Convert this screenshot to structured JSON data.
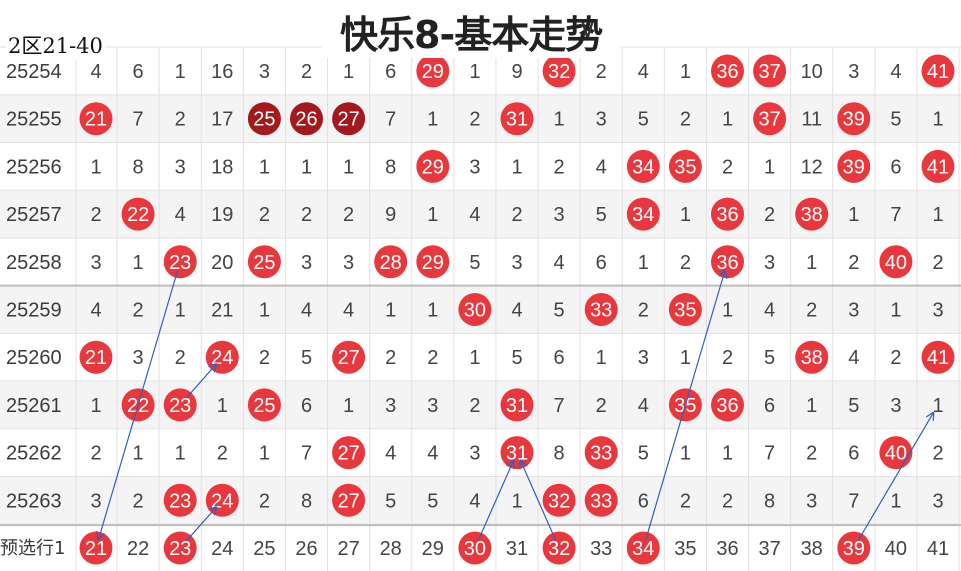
{
  "header": {
    "title": "快乐8-基本走势",
    "chevron_icon": "chevron-down-icon",
    "chevron_glyph": "∨",
    "subtitle": "2区21-40"
  },
  "grid": {
    "columns": [
      21,
      22,
      23,
      24,
      25,
      26,
      27,
      28,
      29,
      30,
      31,
      32,
      33,
      34,
      35,
      36,
      37,
      38,
      39,
      40,
      41
    ],
    "rows": [
      {
        "label": "25254",
        "values": [
          "4",
          "6",
          "1",
          "16",
          "3",
          "2",
          "1",
          "6",
          "29",
          "1",
          "9",
          "32",
          "2",
          "4",
          "1",
          "36",
          "37",
          "10",
          "3",
          "4",
          "41"
        ]
      },
      {
        "label": "25255",
        "values": [
          "21",
          "7",
          "2",
          "17",
          "25",
          "26",
          "27",
          "7",
          "1",
          "2",
          "31",
          "1",
          "3",
          "5",
          "2",
          "1",
          "37",
          "11",
          "39",
          "5",
          "1"
        ]
      },
      {
        "label": "25256",
        "values": [
          "1",
          "8",
          "3",
          "18",
          "1",
          "1",
          "1",
          "8",
          "29",
          "3",
          "1",
          "2",
          "4",
          "34",
          "35",
          "2",
          "1",
          "12",
          "39",
          "6",
          "41"
        ]
      },
      {
        "label": "25257",
        "values": [
          "2",
          "22",
          "4",
          "19",
          "2",
          "2",
          "2",
          "9",
          "1",
          "4",
          "2",
          "3",
          "5",
          "34",
          "1",
          "36",
          "2",
          "38",
          "1",
          "7",
          "1"
        ]
      },
      {
        "label": "25258",
        "values": [
          "3",
          "1",
          "23",
          "20",
          "25",
          "3",
          "3",
          "28",
          "29",
          "5",
          "3",
          "4",
          "6",
          "1",
          "2",
          "36",
          "3",
          "1",
          "2",
          "40",
          "2"
        ]
      },
      {
        "label": "25259",
        "values": [
          "4",
          "2",
          "1",
          "21",
          "1",
          "4",
          "4",
          "1",
          "1",
          "30",
          "4",
          "5",
          "33",
          "2",
          "35",
          "1",
          "4",
          "2",
          "3",
          "1",
          "3"
        ]
      },
      {
        "label": "25260",
        "values": [
          "21",
          "3",
          "2",
          "24",
          "2",
          "5",
          "27",
          "2",
          "2",
          "1",
          "5",
          "6",
          "1",
          "3",
          "1",
          "2",
          "5",
          "38",
          "4",
          "2",
          "41"
        ]
      },
      {
        "label": "25261",
        "values": [
          "1",
          "22",
          "23",
          "1",
          "25",
          "6",
          "1",
          "3",
          "3",
          "2",
          "31",
          "7",
          "2",
          "4",
          "35",
          "36",
          "6",
          "1",
          "5",
          "3",
          "1"
        ]
      },
      {
        "label": "25262",
        "values": [
          "2",
          "1",
          "1",
          "2",
          "1",
          "7",
          "27",
          "4",
          "4",
          "3",
          "31",
          "8",
          "33",
          "5",
          "1",
          "1",
          "7",
          "2",
          "6",
          "40",
          "2"
        ]
      },
      {
        "label": "25263",
        "values": [
          "3",
          "2",
          "23",
          "24",
          "2",
          "8",
          "27",
          "5",
          "5",
          "4",
          "1",
          "32",
          "33",
          "6",
          "2",
          "2",
          "8",
          "3",
          "7",
          "1",
          "3"
        ]
      }
    ],
    "dark_balls": [
      "25255:25",
      "25255:26",
      "25255:27"
    ],
    "forecast": {
      "label": "预选行1",
      "values": [
        "21",
        "22",
        "23",
        "24",
        "25",
        "26",
        "27",
        "28",
        "29",
        "30",
        "31",
        "32",
        "33",
        "34",
        "35",
        "36",
        "37",
        "38",
        "39",
        "40",
        "41"
      ],
      "picked": [
        "21",
        "23",
        "30",
        "32",
        "34",
        "39"
      ]
    }
  },
  "colors": {
    "ball_red": "#e8383d",
    "ball_dark": "#a3191e",
    "number_text": "#444444",
    "row_label": "#3a3a3a",
    "stripe": "#f4f4f4",
    "grid_line": "#e2e2e2",
    "divider": "#bdbdbd",
    "arrow": "#2f5ec4"
  },
  "arrows": [
    [
      "25258:23",
      "forecast:21"
    ],
    [
      "25261:23",
      "25260:24"
    ],
    [
      "forecast:23",
      "25263:24"
    ],
    [
      "forecast:30",
      "25262:31"
    ],
    [
      "forecast:32",
      "25262:31"
    ],
    [
      "forecast:34",
      "25258:36"
    ],
    [
      "forecast:39",
      "25261:41"
    ]
  ]
}
